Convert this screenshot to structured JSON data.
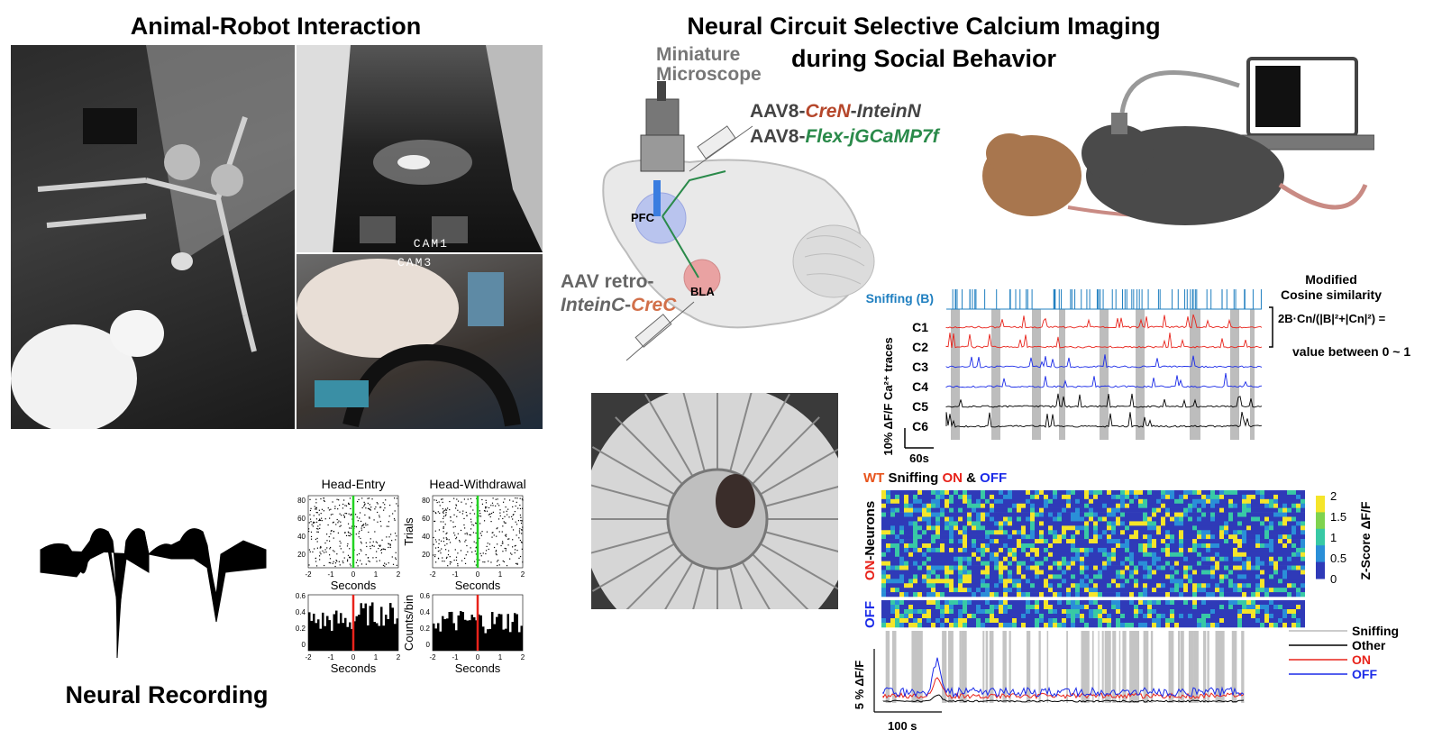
{
  "titles": {
    "left": "Animal-Robot Interaction",
    "right_line1": "Neural Circuit Selective Calcium Imaging",
    "right_line2": "during Social Behavior",
    "neural_recording": "Neural Recording"
  },
  "cams": {
    "cam1": "CAM1",
    "cam3": "CAM3"
  },
  "brain": {
    "microscope_line1": "Miniature",
    "microscope_line2": "Microscope",
    "aav1_prefix": "AAV8-",
    "aav1_a": "CreN",
    "aav1_b": "-",
    "aav1_c": "InteinN",
    "aav2_prefix": "AAV8-",
    "aav2_a": "Flex-jGCaMP7f",
    "retro_line1": "AAV retro-",
    "retro_a": "InteinC",
    "retro_b": "-",
    "retro_c": "CreC",
    "pfc": "PFC",
    "bla": "BLA"
  },
  "traces": {
    "sniffing": "Sniffing (B)",
    "cells": [
      "C1",
      "C2",
      "C3",
      "C4",
      "C5",
      "C6"
    ],
    "ylabel": "10% ΔF/F   Ca²⁺ traces",
    "scale": "60s",
    "cos_title1": "Modified",
    "cos_title2": "Cosine similarity",
    "cos_formula": "2B·Cn/(|B|²+|Cn|²) =",
    "cos_value": "value between 0 ~ 1"
  },
  "raster": {
    "title_entry": "Head-Entry",
    "title_withdraw": "Head-Withdrawal",
    "ylabel_top": "Trials",
    "ylabel_bottom": "Counts/bin",
    "xlabel": "Seconds",
    "xticks": [
      "-2",
      "-1",
      "0",
      "1",
      "2"
    ],
    "yticks_top": [
      "80",
      "60",
      "40",
      "20"
    ],
    "yticks_bottom": [
      "0.6",
      "0.4",
      "0.2",
      "0"
    ]
  },
  "heatmap": {
    "title_wt": "WT",
    "title_sniff": " Sniffing ",
    "title_on": "ON",
    "title_amp": " & ",
    "title_off": "OFF",
    "on_label": "ON",
    "on_suffix": "-Neurons",
    "off_label": "OFF",
    "colorbar_label": "Z-Score ΔF/F",
    "colorbar_ticks": [
      "2",
      "1.5",
      "1",
      "0.5",
      "0"
    ]
  },
  "avg": {
    "legend": [
      "Sniffing",
      "Other",
      "ON",
      "OFF"
    ],
    "ylabel": "5 % ΔF/F",
    "scale": "100 s"
  },
  "colors": {
    "red": "#e8231b",
    "blue": "#1b2be8",
    "green": "#2a8a4a",
    "brown": "#b5462a",
    "sniff": "#1f7fc0"
  }
}
